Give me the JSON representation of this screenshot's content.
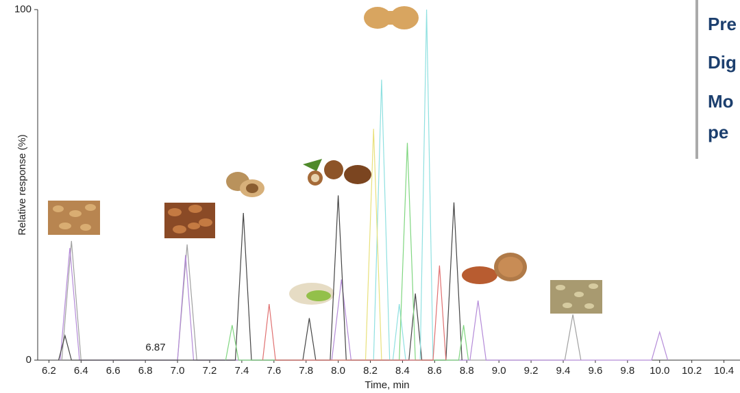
{
  "chart_data": {
    "type": "line",
    "xlabel": "Time, min",
    "ylabel": "Relative response (%)",
    "annotation": "6.87",
    "xlim": [
      6.13,
      10.5
    ],
    "ylim": [
      0,
      100
    ],
    "yticks": [
      0,
      100
    ],
    "xticks": [
      6.2,
      6.4,
      6.6,
      6.8,
      {
        "value": 7,
        "label": "7.0"
      },
      7.2,
      7.4,
      7.6,
      7.8,
      {
        "value": 8,
        "label": "8.0"
      },
      8.2,
      8.4,
      8.6,
      8.8,
      {
        "value": 9,
        "label": "9.0"
      },
      9.2,
      9.4,
      9.6,
      9.8,
      {
        "value": 10,
        "label": "10.0"
      },
      10.2,
      10.4
    ],
    "series": [
      {
        "color": "#a0a0a0",
        "x": [
          6.28,
          6.34,
          6.4,
          7.0,
          7.06,
          7.12,
          9.41,
          9.46,
          9.51
        ],
        "values": [
          0,
          34,
          0,
          0,
          33,
          0,
          0,
          13,
          0
        ]
      },
      {
        "color": "#b48ad8",
        "x": [
          6.27,
          6.33,
          6.39,
          7.0,
          7.05,
          7.1,
          7.96,
          8.02,
          8.08,
          8.82,
          8.87,
          8.92,
          9.95,
          10.0,
          10.05
        ],
        "values": [
          0,
          32,
          0,
          0,
          30,
          0,
          0,
          23,
          0,
          0,
          17,
          0,
          0,
          8,
          0
        ]
      },
      {
        "color": "#444444",
        "x": [
          6.26,
          6.3,
          6.34,
          7.36,
          7.41,
          7.46,
          7.78,
          7.82,
          7.86,
          7.95,
          8.0,
          8.05,
          8.44,
          8.48,
          8.52,
          8.67,
          8.72,
          8.77
        ],
        "values": [
          0,
          7,
          0,
          0,
          42,
          0,
          0,
          12,
          0,
          0,
          47,
          0,
          0,
          19,
          0,
          0,
          45,
          0
        ]
      },
      {
        "color": "#8ee0e0",
        "x": [
          8.22,
          8.27,
          8.32,
          8.34,
          8.38,
          8.42,
          8.51,
          8.55,
          8.59
        ],
        "values": [
          0,
          80,
          0,
          0,
          16,
          0,
          0,
          100,
          0
        ]
      },
      {
        "color": "#e8e07a",
        "x": [
          8.17,
          8.22,
          8.27
        ],
        "values": [
          0,
          66,
          0
        ]
      },
      {
        "color": "#7fd67f",
        "x": [
          7.3,
          7.34,
          7.38,
          8.38,
          8.43,
          8.48,
          8.75,
          8.78,
          8.81
        ],
        "values": [
          0,
          10,
          0,
          0,
          62,
          0,
          0,
          10,
          0
        ]
      },
      {
        "color": "#e07070",
        "x": [
          7.53,
          7.57,
          7.61,
          8.59,
          8.63,
          8.67
        ],
        "values": [
          0,
          16,
          0,
          0,
          27,
          0
        ]
      }
    ]
  },
  "side_panel": [
    "Pre",
    "Dig",
    "Mo",
    "pe"
  ]
}
